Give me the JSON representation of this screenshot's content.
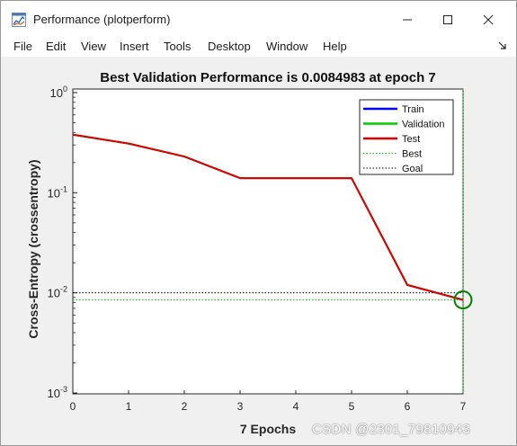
{
  "window": {
    "title": "Performance (plotperform)",
    "icon": "matlab-figure-icon"
  },
  "menu": [
    "File",
    "Edit",
    "View",
    "Insert",
    "Tools",
    "Desktop",
    "Window",
    "Help"
  ],
  "watermark": "CSDN @2301_79810943",
  "colors": {
    "train": "#0000ff",
    "validation": "#00cc00",
    "test": "#e00000",
    "best_marker": "#008000"
  },
  "chart_data": {
    "type": "line",
    "title": "Best Validation Performance is 0.0084983 at epoch 7",
    "xlabel": "7 Epochs",
    "ylabel": "Cross-Entropy  (crossentropy)",
    "yscale": "log",
    "xlim": [
      0,
      7
    ],
    "ylim": [
      0.001,
      1
    ],
    "x_ticks": [
      "0",
      "1",
      "2",
      "3",
      "4",
      "5",
      "6",
      "7"
    ],
    "y_ticks": [
      {
        "base": "10",
        "exp": "0"
      },
      {
        "base": "10",
        "exp": "-1"
      },
      {
        "base": "10",
        "exp": "-2"
      },
      {
        "base": "10",
        "exp": "-3"
      }
    ],
    "x": [
      0,
      1,
      2,
      3,
      4,
      5,
      6,
      7
    ],
    "series": [
      {
        "name": "Train",
        "values": [
          0.38,
          0.31,
          0.23,
          0.14,
          0.14,
          0.14,
          0.012,
          0.0085
        ]
      },
      {
        "name": "Validation",
        "values": [
          0.38,
          0.31,
          0.23,
          0.14,
          0.14,
          0.14,
          0.012,
          0.0084983
        ]
      },
      {
        "name": "Test",
        "values": [
          0.38,
          0.31,
          0.23,
          0.14,
          0.14,
          0.14,
          0.012,
          0.0085
        ]
      }
    ],
    "legend": [
      "Train",
      "Validation",
      "Test",
      "Best",
      "Goal"
    ],
    "legend_position": "top-right",
    "best": {
      "epoch": 7,
      "value": 0.0084983
    },
    "goal": 0.01,
    "grid": false
  }
}
